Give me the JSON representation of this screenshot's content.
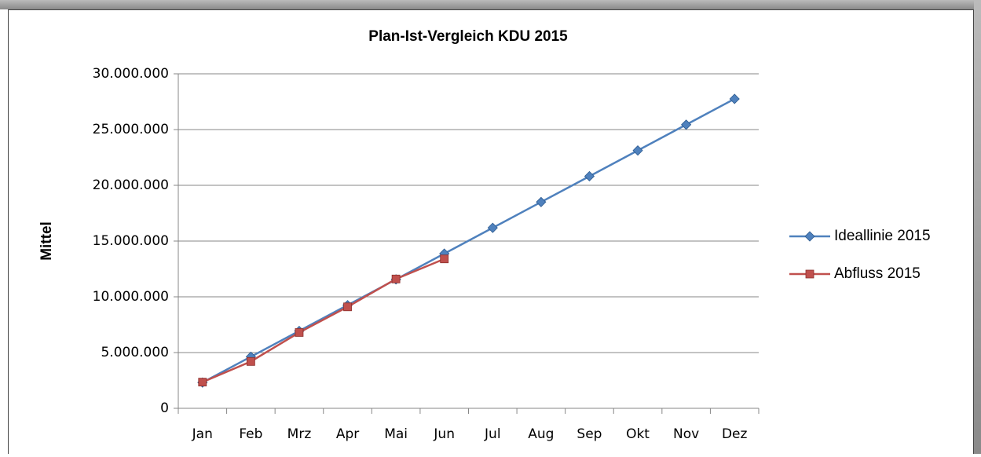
{
  "chart_data": {
    "type": "line",
    "title": "Plan-Ist-Vergleich KDU 2015",
    "y_label": "Mittel",
    "categories": [
      "Jan",
      "Feb",
      "Mrz",
      "Apr",
      "Mai",
      "Jun",
      "Jul",
      "Aug",
      "Sep",
      "Okt",
      "Nov",
      "Dez"
    ],
    "series": [
      {
        "name": "Ideallinie 2015",
        "color": "#4f81bd",
        "marker": "diamond",
        "values": [
          2312500,
          4625000,
          6937500,
          9250000,
          11562500,
          13875000,
          16187500,
          18500000,
          20812500,
          23125000,
          25437500,
          27750000
        ]
      },
      {
        "name": "Abfluss 2015",
        "color": "#c0504d",
        "marker": "square",
        "values": [
          2350000,
          4200000,
          6800000,
          9100000,
          11600000,
          13400000,
          null,
          null,
          null,
          null,
          null,
          null
        ]
      }
    ],
    "ylim": [
      0,
      30000000
    ],
    "yticks": [
      0,
      {
        "value": 5000000,
        "label": "5.000.000"
      },
      {
        "value": 10000000,
        "label": "10.000.000"
      },
      {
        "value": 15000000,
        "label": "15.000.000"
      },
      {
        "value": 20000000,
        "label": "20.000.000"
      },
      {
        "value": 25000000,
        "label": "25.000.000"
      },
      {
        "value": 30000000,
        "label": "30.000.000"
      }
    ],
    "grid": true,
    "legend": "right"
  }
}
